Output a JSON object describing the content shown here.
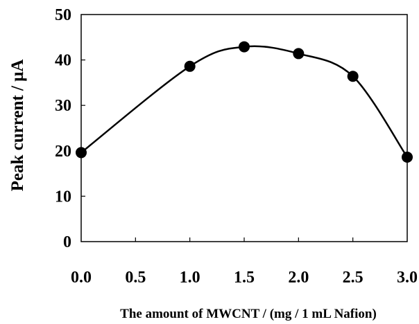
{
  "chart_data": {
    "type": "scatter",
    "title": "",
    "xlabel": "The amount of MWCNT / (mg / 1 mL Nafion)",
    "ylabel": "Peak current /  μA",
    "xlim": [
      0.0,
      3.0
    ],
    "ylim": [
      0,
      50
    ],
    "x_ticks": [
      "0.0",
      "0.5",
      "1.0",
      "1.5",
      "2.0",
      "2.5",
      "3.0"
    ],
    "y_ticks": [
      "0",
      "10",
      "20",
      "30",
      "40",
      "50"
    ],
    "grid": false,
    "legend": "none",
    "smoothed_line": true,
    "marker": "filled-circle",
    "color": "#000000",
    "series": [
      {
        "x": [
          0.0,
          1.0,
          1.5,
          2.0,
          2.5,
          3.0
        ],
        "y": [
          19.6,
          38.6,
          42.9,
          41.4,
          36.4,
          18.6
        ]
      }
    ]
  }
}
